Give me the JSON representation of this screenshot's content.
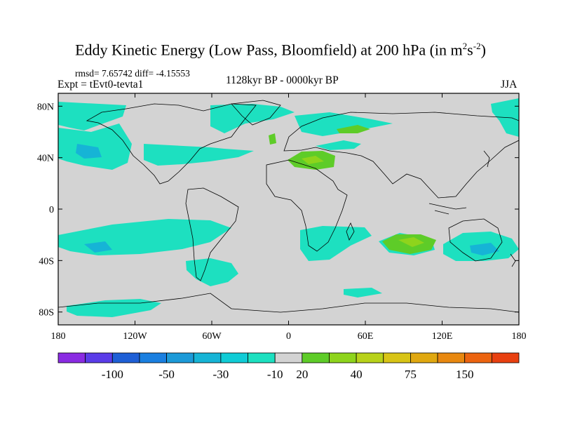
{
  "title": {
    "main": "Eddy Kinetic Energy (Low Pass, Bloomfield) at 200 hPa (in m",
    "sup1": "2",
    "mid": "s",
    "sup2": "-2",
    "end": ")"
  },
  "stats": "rmsd= 7.65742 diff= -4.15553",
  "experiment": "Expt = tEvt0-tevta1",
  "period": "1128kyr BP - 0000kyr BP",
  "season": "JJA",
  "map": {
    "background_color": "#d3d3d3",
    "lat_ticks": [
      {
        "label": "80N",
        "value": 80
      },
      {
        "label": "40N",
        "value": 40
      },
      {
        "label": "0",
        "value": 0
      },
      {
        "label": "40S",
        "value": -40
      },
      {
        "label": "80S",
        "value": -80
      }
    ],
    "lon_ticks": [
      {
        "label": "180",
        "value": -180
      },
      {
        "label": "120W",
        "value": -120
      },
      {
        "label": "60W",
        "value": -60
      },
      {
        "label": "0",
        "value": 0
      },
      {
        "label": "60E",
        "value": 60
      },
      {
        "label": "120E",
        "value": 120
      },
      {
        "label": "180",
        "value": 180
      }
    ]
  },
  "colorbar": {
    "colors": [
      "#8a2be2",
      "#5a3ce8",
      "#1e5fd6",
      "#1a7fe0",
      "#1c9ad8",
      "#16b4d6",
      "#10ccd6",
      "#1de0c0",
      "#d3d3d3",
      "#5ecc28",
      "#8ed41c",
      "#b8d21a",
      "#d8c416",
      "#e0a810",
      "#e88810",
      "#ec6410",
      "#e84010"
    ],
    "labels": [
      "-100",
      "-50",
      "-30",
      "-10",
      "20",
      "40",
      "75",
      "150"
    ]
  }
}
